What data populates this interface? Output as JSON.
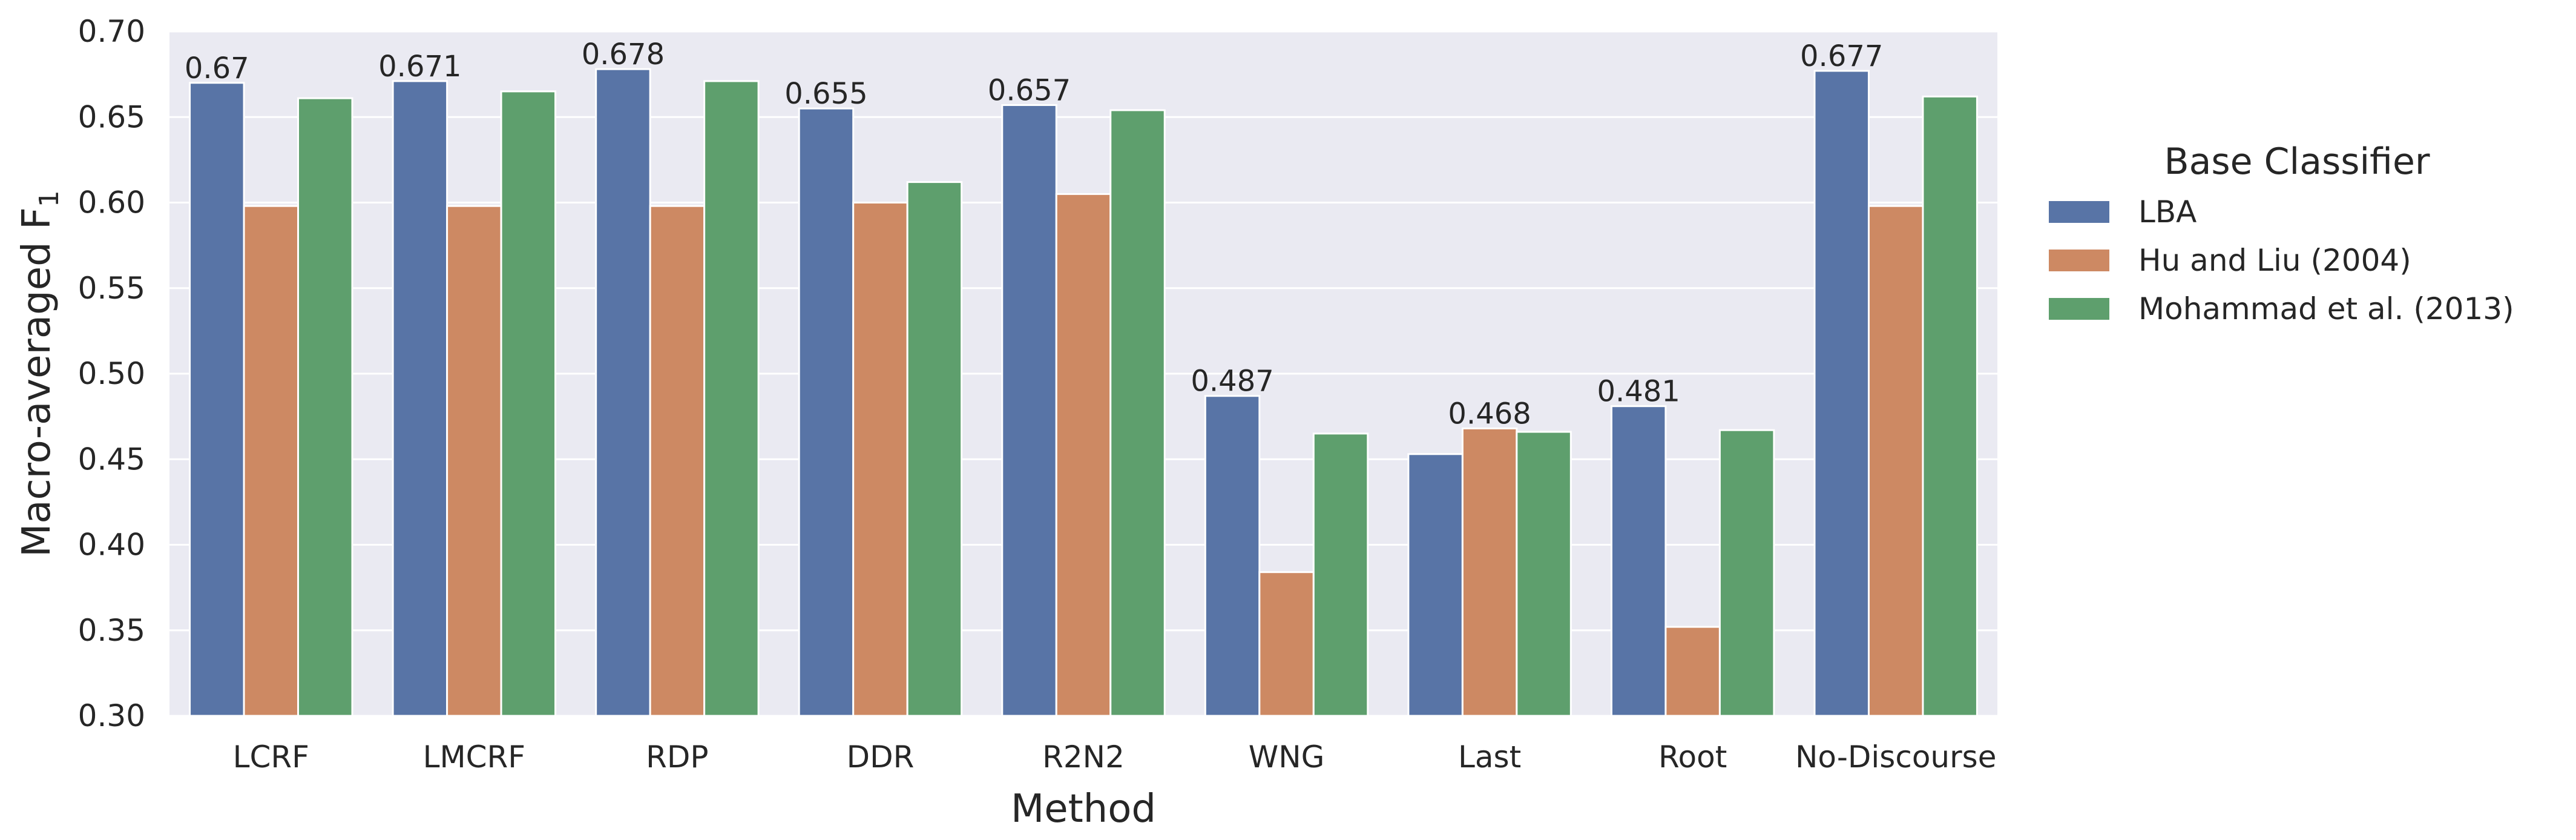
{
  "chart_data": {
    "type": "bar",
    "xlabel": "Method",
    "ylabel": "Macro-averaged F",
    "ylabel_subscript": "1",
    "ylim": [
      0.3,
      0.7
    ],
    "yticks": [
      "0.30",
      "0.35",
      "0.40",
      "0.45",
      "0.50",
      "0.55",
      "0.60",
      "0.65",
      "0.70"
    ],
    "grid": true,
    "legend_position": "right",
    "legend_title": "Base Classifier",
    "categories": [
      "LCRF",
      "LMCRF",
      "RDP",
      "DDR",
      "R2N2",
      "WNG",
      "Last",
      "Root",
      "No-Discourse"
    ],
    "series": [
      {
        "name": "LBA",
        "color": "#5874a6",
        "values": [
          0.67,
          0.671,
          0.678,
          0.655,
          0.657,
          0.487,
          0.453,
          0.481,
          0.677
        ]
      },
      {
        "name": "Hu and Liu (2004)",
        "color": "#cd8963",
        "values": [
          0.598,
          0.598,
          0.598,
          0.6,
          0.605,
          0.384,
          0.468,
          0.352,
          0.598
        ]
      },
      {
        "name": "Mohammad et al. (2013)",
        "color": "#5e9f6d",
        "values": [
          0.661,
          0.665,
          0.671,
          0.612,
          0.654,
          0.465,
          0.466,
          0.467,
          0.662
        ]
      }
    ],
    "annotations": [
      {
        "category": "LCRF",
        "series": "LBA",
        "text": "0.67"
      },
      {
        "category": "LMCRF",
        "series": "LBA",
        "text": "0.671"
      },
      {
        "category": "RDP",
        "series": "LBA",
        "text": "0.678"
      },
      {
        "category": "DDR",
        "series": "LBA",
        "text": "0.655"
      },
      {
        "category": "R2N2",
        "series": "LBA",
        "text": "0.657"
      },
      {
        "category": "WNG",
        "series": "LBA",
        "text": "0.487"
      },
      {
        "category": "Last",
        "series": "Hu and Liu (2004)",
        "text": "0.468"
      },
      {
        "category": "Root",
        "series": "LBA",
        "text": "0.481"
      },
      {
        "category": "No-Discourse",
        "series": "LBA",
        "text": "0.677"
      }
    ],
    "style": {
      "plot_background": "#eaeaf2",
      "grid_color": "#ffffff"
    }
  }
}
